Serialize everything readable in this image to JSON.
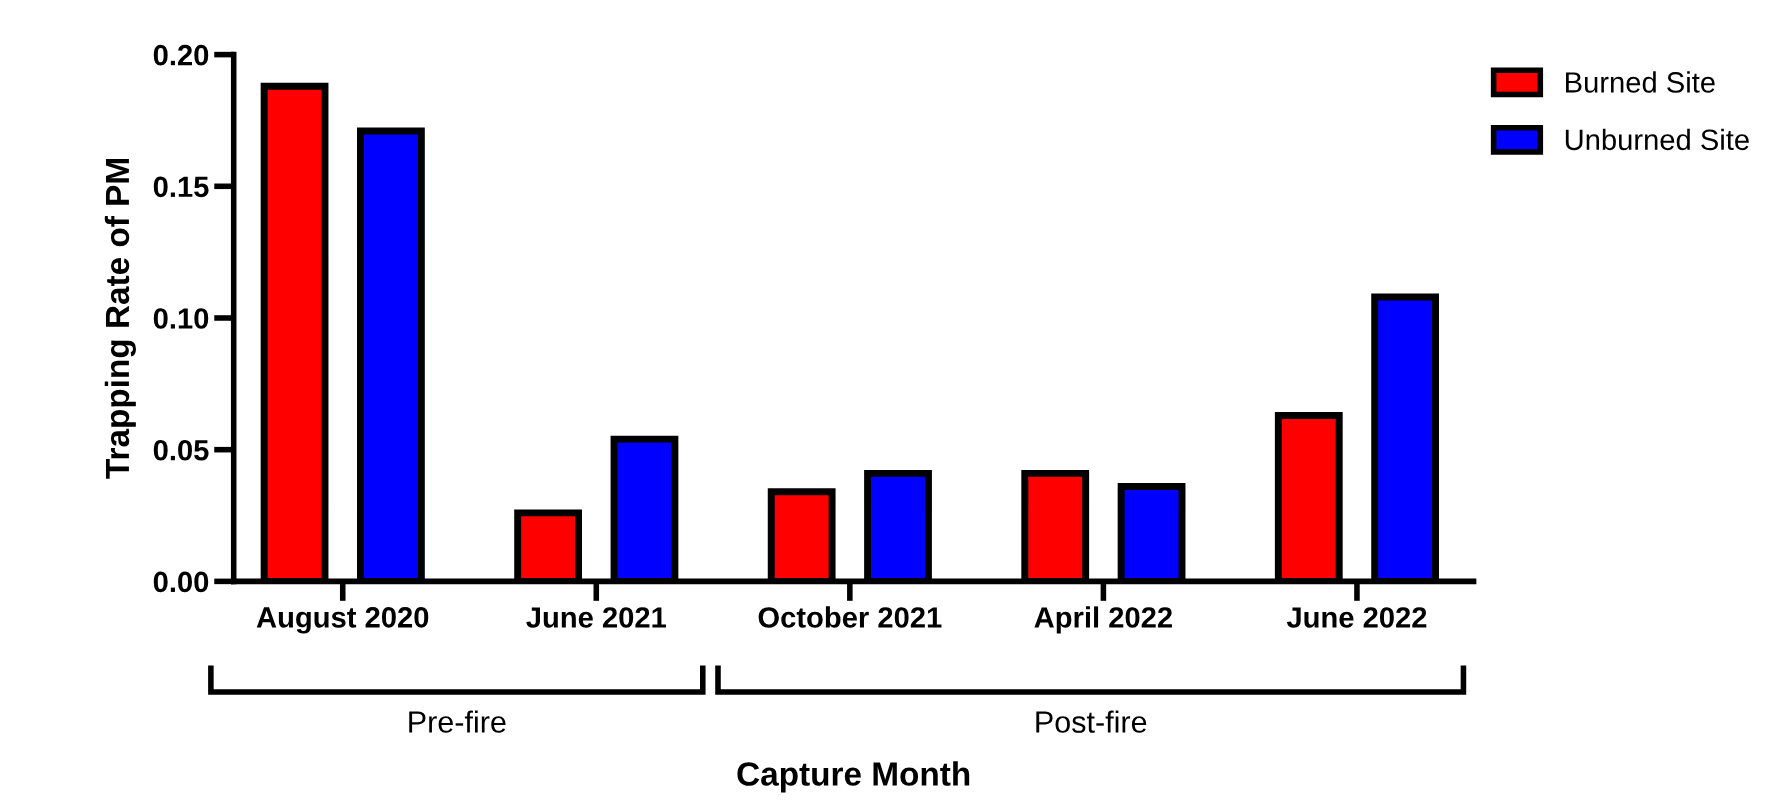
{
  "chart_data": {
    "type": "bar",
    "xlabel": "Capture Month",
    "ylabel": "Trapping Rate of PM",
    "categories": [
      "August 2020",
      "June 2021",
      "October 2021",
      "April 2022",
      "June 2022"
    ],
    "series": [
      {
        "name": "Burned Site",
        "color": "#ff0000",
        "values": [
          0.188,
          0.026,
          0.034,
          0.041,
          0.063
        ]
      },
      {
        "name": "Unburned Site",
        "color": "#0000ff",
        "values": [
          0.171,
          0.054,
          0.041,
          0.036,
          0.108
        ]
      }
    ],
    "ylim": [
      0,
      0.2
    ],
    "yticks": [
      {
        "value": 0,
        "label": "0.00"
      },
      {
        "value": 0.05,
        "label": "0.05"
      },
      {
        "value": 0.1,
        "label": "0.10"
      },
      {
        "value": 0.15,
        "label": "0.15"
      },
      {
        "value": 0.2,
        "label": "0.20"
      }
    ],
    "annotations": [
      "Pre-fire",
      "Post-fire"
    ],
    "grid": false,
    "legend": "top right"
  }
}
